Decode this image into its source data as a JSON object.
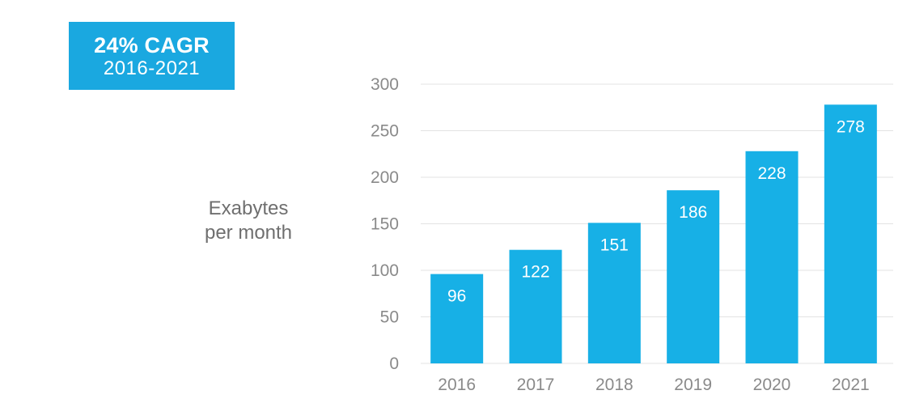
{
  "badge": {
    "title": "24% CAGR",
    "range": "2016-2021",
    "color": "#1aa8e0"
  },
  "chart_data": {
    "type": "bar",
    "title": "",
    "xlabel": "",
    "ylabel": "Exabytes per month",
    "ylabel_lines": [
      "Exabytes",
      "per month"
    ],
    "categories": [
      "2016",
      "2017",
      "2018",
      "2019",
      "2020",
      "2021"
    ],
    "values": [
      96,
      122,
      151,
      186,
      228,
      278
    ],
    "data_labels": [
      "96",
      "122",
      "151",
      "186",
      "228",
      "278"
    ],
    "ylim": [
      0,
      300
    ],
    "yticks": [
      0,
      50,
      100,
      150,
      200,
      250,
      300
    ],
    "grid": true,
    "legend": "none",
    "bar_color": "#17b0e6",
    "grid_color": "#e3e3e3"
  }
}
